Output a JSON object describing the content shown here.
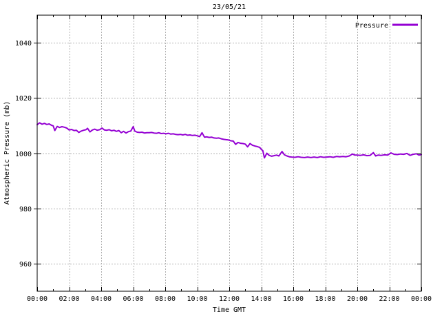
{
  "colors": {
    "line": "#9400d3",
    "grid": "#b0b0b0",
    "axis": "#000000",
    "text": "#000000",
    "background": "#ffffff"
  },
  "chart_data": {
    "type": "line",
    "title": "23/05/21",
    "xlabel": "Time GMT",
    "ylabel": "Atmospheric Pressure (mb)",
    "xlim_hours": [
      0,
      24
    ],
    "ylim": [
      950,
      1050
    ],
    "x_major_tick_interval_hours": 2,
    "x_minor_tick_interval_hours": 1,
    "x_tick_labels": [
      "00:00",
      "02:00",
      "04:00",
      "06:00",
      "08:00",
      "10:00",
      "12:00",
      "14:00",
      "16:00",
      "18:00",
      "20:00",
      "22:00",
      "00:00"
    ],
    "y_ticks": [
      960,
      980,
      1000,
      1020,
      1040
    ],
    "grid": true,
    "legend": {
      "label": "Pressure",
      "position": "top-right"
    },
    "series": [
      {
        "name": "Pressure",
        "color": "#9400d3",
        "points": [
          [
            0,
            1010.3
          ],
          [
            0.15,
            1011.0
          ],
          [
            0.3,
            1010.5
          ],
          [
            0.45,
            1010.8
          ],
          [
            0.6,
            1010.4
          ],
          [
            0.75,
            1010.6
          ],
          [
            0.9,
            1010.1
          ],
          [
            1.0,
            1009.9
          ],
          [
            1.1,
            1008.2
          ],
          [
            1.25,
            1009.7
          ],
          [
            1.4,
            1009.3
          ],
          [
            1.55,
            1009.6
          ],
          [
            1.7,
            1009.4
          ],
          [
            1.85,
            1009.1
          ],
          [
            2.0,
            1008.4
          ],
          [
            2.15,
            1008.6
          ],
          [
            2.3,
            1008.2
          ],
          [
            2.45,
            1008.3
          ],
          [
            2.6,
            1007.5
          ],
          [
            2.75,
            1008.0
          ],
          [
            2.9,
            1008.3
          ],
          [
            3.05,
            1008.5
          ],
          [
            3.15,
            1009.0
          ],
          [
            3.3,
            1007.7
          ],
          [
            3.45,
            1008.4
          ],
          [
            3.6,
            1008.7
          ],
          [
            3.75,
            1008.3
          ],
          [
            3.9,
            1008.5
          ],
          [
            4.05,
            1009.1
          ],
          [
            4.2,
            1008.4
          ],
          [
            4.35,
            1008.3
          ],
          [
            4.5,
            1008.5
          ],
          [
            4.65,
            1008.1
          ],
          [
            4.8,
            1008.3
          ],
          [
            4.95,
            1007.9
          ],
          [
            5.1,
            1008.2
          ],
          [
            5.25,
            1007.4
          ],
          [
            5.4,
            1007.9
          ],
          [
            5.55,
            1007.3
          ],
          [
            5.7,
            1007.8
          ],
          [
            5.85,
            1008.0
          ],
          [
            6.0,
            1009.6
          ],
          [
            6.1,
            1008.0
          ],
          [
            6.25,
            1007.6
          ],
          [
            6.4,
            1007.5
          ],
          [
            6.55,
            1007.6
          ],
          [
            6.7,
            1007.3
          ],
          [
            6.85,
            1007.4
          ],
          [
            7.0,
            1007.4
          ],
          [
            7.15,
            1007.5
          ],
          [
            7.3,
            1007.3
          ],
          [
            7.45,
            1007.2
          ],
          [
            7.6,
            1007.4
          ],
          [
            7.75,
            1007.1
          ],
          [
            7.9,
            1007.2
          ],
          [
            8.05,
            1007.0
          ],
          [
            8.2,
            1007.2
          ],
          [
            8.35,
            1006.9
          ],
          [
            8.5,
            1007.0
          ],
          [
            8.65,
            1006.8
          ],
          [
            8.8,
            1006.7
          ],
          [
            8.95,
            1006.8
          ],
          [
            9.1,
            1006.6
          ],
          [
            9.25,
            1006.8
          ],
          [
            9.4,
            1006.5
          ],
          [
            9.55,
            1006.6
          ],
          [
            9.7,
            1006.4
          ],
          [
            9.85,
            1006.5
          ],
          [
            10.0,
            1006.3
          ],
          [
            10.15,
            1006.0
          ],
          [
            10.3,
            1007.4
          ],
          [
            10.45,
            1005.8
          ],
          [
            10.6,
            1005.9
          ],
          [
            10.75,
            1005.7
          ],
          [
            10.9,
            1005.8
          ],
          [
            11.05,
            1005.5
          ],
          [
            11.2,
            1005.4
          ],
          [
            11.35,
            1005.5
          ],
          [
            11.5,
            1005.2
          ],
          [
            11.65,
            1005.0
          ],
          [
            11.8,
            1004.9
          ],
          [
            11.95,
            1004.8
          ],
          [
            12.1,
            1004.5
          ],
          [
            12.25,
            1004.4
          ],
          [
            12.4,
            1003.2
          ],
          [
            12.55,
            1003.9
          ],
          [
            12.7,
            1003.6
          ],
          [
            12.85,
            1003.5
          ],
          [
            13.0,
            1003.3
          ],
          [
            13.15,
            1002.3
          ],
          [
            13.3,
            1003.5
          ],
          [
            13.45,
            1002.9
          ],
          [
            13.6,
            1002.6
          ],
          [
            13.75,
            1002.4
          ],
          [
            13.9,
            1002.1
          ],
          [
            14.0,
            1001.4
          ],
          [
            14.1,
            1000.9
          ],
          [
            14.2,
            998.3
          ],
          [
            14.35,
            1000.0
          ],
          [
            14.5,
            999.2
          ],
          [
            14.65,
            998.9
          ],
          [
            14.8,
            999.1
          ],
          [
            14.95,
            999.3
          ],
          [
            15.1,
            999.0
          ],
          [
            15.3,
            1000.6
          ],
          [
            15.45,
            999.4
          ],
          [
            15.6,
            999.0
          ],
          [
            15.75,
            998.7
          ],
          [
            15.9,
            998.6
          ],
          [
            16.1,
            998.5
          ],
          [
            16.3,
            998.7
          ],
          [
            16.5,
            998.5
          ],
          [
            16.7,
            998.4
          ],
          [
            16.9,
            998.6
          ],
          [
            17.1,
            998.4
          ],
          [
            17.3,
            998.6
          ],
          [
            17.5,
            998.4
          ],
          [
            17.7,
            998.7
          ],
          [
            17.9,
            998.5
          ],
          [
            18.1,
            998.6
          ],
          [
            18.3,
            998.7
          ],
          [
            18.5,
            998.5
          ],
          [
            18.7,
            998.8
          ],
          [
            18.9,
            998.7
          ],
          [
            19.1,
            998.8
          ],
          [
            19.3,
            998.7
          ],
          [
            19.5,
            999.0
          ],
          [
            19.7,
            999.7
          ],
          [
            19.85,
            999.3
          ],
          [
            20.0,
            999.3
          ],
          [
            20.2,
            999.2
          ],
          [
            20.4,
            999.4
          ],
          [
            20.6,
            999.1
          ],
          [
            20.8,
            999.2
          ],
          [
            21.0,
            1000.2
          ],
          [
            21.15,
            999.0
          ],
          [
            21.3,
            999.3
          ],
          [
            21.5,
            999.2
          ],
          [
            21.7,
            999.4
          ],
          [
            21.9,
            999.3
          ],
          [
            22.1,
            1000.1
          ],
          [
            22.3,
            999.6
          ],
          [
            22.5,
            999.5
          ],
          [
            22.7,
            999.7
          ],
          [
            22.9,
            999.6
          ],
          [
            23.1,
            999.9
          ],
          [
            23.3,
            999.2
          ],
          [
            23.5,
            999.6
          ],
          [
            23.7,
            999.8
          ],
          [
            23.85,
            999.3
          ],
          [
            24.0,
            999.5
          ]
        ]
      }
    ]
  }
}
